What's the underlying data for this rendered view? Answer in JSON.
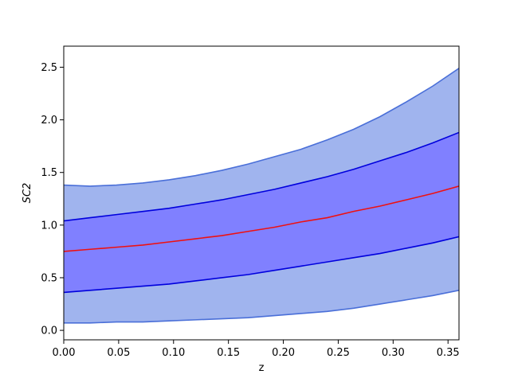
{
  "chart_data": {
    "type": "area",
    "title": "",
    "xlabel": "z",
    "ylabel": "SC2",
    "xlim": [
      0.0,
      0.36
    ],
    "ylim": [
      -0.09,
      2.7
    ],
    "xticks": [
      0.0,
      0.05,
      0.1,
      0.15,
      0.2,
      0.25,
      0.3,
      0.35
    ],
    "xtick_labels": [
      "0.00",
      "0.05",
      "0.10",
      "0.15",
      "0.20",
      "0.25",
      "0.30",
      "0.35"
    ],
    "yticks": [
      0.0,
      0.5,
      1.0,
      1.5,
      2.0,
      2.5
    ],
    "ytick_labels": [
      "0.0",
      "0.5",
      "1.0",
      "1.5",
      "2.0",
      "2.5"
    ],
    "grid": false,
    "legend": "none",
    "x": [
      0.0,
      0.024,
      0.048,
      0.072,
      0.096,
      0.12,
      0.144,
      0.168,
      0.192,
      0.216,
      0.24,
      0.264,
      0.288,
      0.312,
      0.336,
      0.36
    ],
    "series": [
      {
        "role": "outer-upper",
        "values": [
          1.38,
          1.37,
          1.38,
          1.4,
          1.43,
          1.47,
          1.52,
          1.58,
          1.65,
          1.72,
          1.81,
          1.91,
          2.03,
          2.17,
          2.32,
          2.49
        ]
      },
      {
        "role": "inner-upper",
        "values": [
          1.04,
          1.07,
          1.1,
          1.13,
          1.16,
          1.2,
          1.24,
          1.29,
          1.34,
          1.4,
          1.46,
          1.53,
          1.61,
          1.69,
          1.78,
          1.88
        ]
      },
      {
        "role": "median",
        "values": [
          0.75,
          0.77,
          0.79,
          0.81,
          0.84,
          0.87,
          0.9,
          0.94,
          0.98,
          1.03,
          1.07,
          1.13,
          1.18,
          1.24,
          1.3,
          1.37
        ]
      },
      {
        "role": "inner-lower",
        "values": [
          0.36,
          0.38,
          0.4,
          0.42,
          0.44,
          0.47,
          0.5,
          0.53,
          0.57,
          0.61,
          0.65,
          0.69,
          0.73,
          0.78,
          0.83,
          0.89
        ]
      },
      {
        "role": "outer-lower",
        "values": [
          0.07,
          0.07,
          0.08,
          0.08,
          0.09,
          0.1,
          0.11,
          0.12,
          0.14,
          0.16,
          0.18,
          0.21,
          0.25,
          0.29,
          0.33,
          0.38
        ]
      }
    ],
    "colors": {
      "outer_band": "#a0b4ee",
      "outer_edge": "#4a6fd8",
      "inner_band": "#8080ff",
      "inner_edge": "#0000dd",
      "median": "#ee1111",
      "axes": "#000000"
    }
  }
}
